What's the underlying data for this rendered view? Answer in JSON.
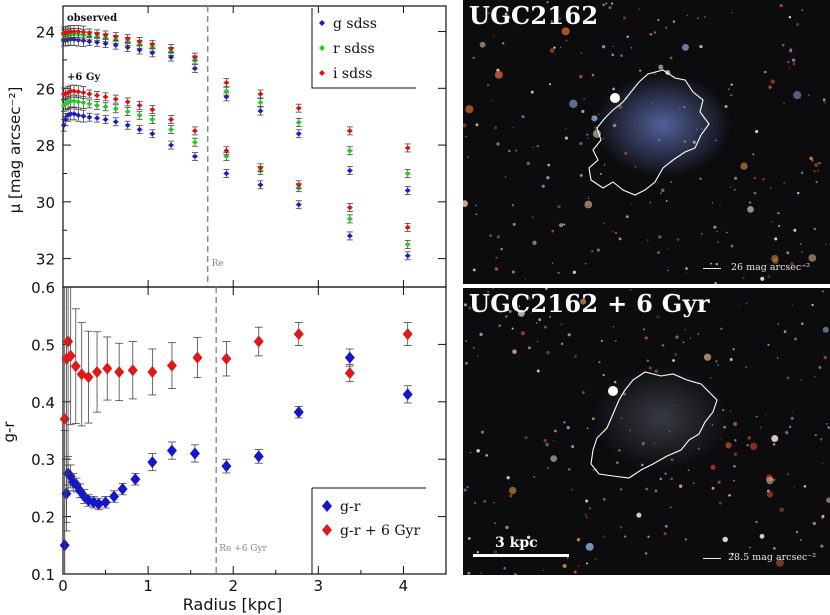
{
  "colors": {
    "g": "#1a1acc",
    "r": "#22cc22",
    "i": "#dd1111",
    "gr": "#1515cc",
    "gr6": "#dd1a1a",
    "axis": "#111111",
    "dash": "#888888"
  },
  "chart_data": [
    {
      "type": "scatter",
      "title": "",
      "xlabel": "",
      "ylabel": "μ [mag arcsec⁻²]",
      "xlim": [
        0,
        4.5
      ],
      "ylim": [
        33.0,
        23.1
      ],
      "yticks": [
        24,
        26,
        28,
        30,
        32
      ],
      "annotations": {
        "observed": "observed",
        "plus6": "+6 Gy",
        "re": "Re"
      },
      "re_line_x": 1.7,
      "legend": {
        "position": "top-right",
        "entries": [
          "g sdss",
          "r sdss",
          "i sdss"
        ]
      },
      "x": [
        0.01,
        0.03,
        0.06,
        0.09,
        0.13,
        0.18,
        0.24,
        0.31,
        0.4,
        0.5,
        0.62,
        0.76,
        0.9,
        1.05,
        1.27,
        1.55,
        1.92,
        2.32,
        2.77,
        3.37,
        4.05
      ],
      "series": [
        {
          "name": "g sdss",
          "group": "observed",
          "values": [
            24.3,
            24.3,
            24.28,
            24.27,
            24.28,
            24.3,
            24.32,
            24.35,
            24.38,
            24.42,
            24.48,
            24.56,
            24.65,
            24.75,
            24.9,
            25.3,
            26.3,
            26.8,
            27.6,
            28.9,
            29.6
          ]
        },
        {
          "name": "r sdss",
          "group": "observed",
          "values": [
            24.15,
            24.15,
            24.12,
            24.1,
            24.1,
            24.1,
            24.13,
            24.15,
            24.18,
            24.22,
            24.28,
            24.35,
            24.45,
            24.55,
            24.7,
            25.0,
            26.1,
            26.5,
            27.2,
            28.2,
            29.0
          ]
        },
        {
          "name": "i sdss",
          "group": "observed",
          "values": [
            24.05,
            24.05,
            24.02,
            24.0,
            24.0,
            24.0,
            24.02,
            24.05,
            24.08,
            24.12,
            24.18,
            24.25,
            24.35,
            24.45,
            24.6,
            24.9,
            25.8,
            26.2,
            26.7,
            27.5,
            28.1
          ]
        },
        {
          "name": "g sdss",
          "group": "+6 Gyr",
          "values": [
            27.3,
            27.1,
            26.95,
            26.9,
            26.9,
            26.95,
            26.98,
            27.02,
            27.05,
            27.1,
            27.18,
            27.3,
            27.45,
            27.6,
            28.0,
            28.4,
            29.0,
            29.4,
            30.1,
            31.2,
            31.9
          ]
        },
        {
          "name": "r sdss",
          "group": "+6 Gyr",
          "values": [
            26.6,
            26.55,
            26.5,
            26.45,
            26.45,
            26.48,
            26.5,
            26.55,
            26.6,
            26.65,
            26.72,
            26.82,
            26.95,
            27.1,
            27.45,
            27.9,
            28.4,
            28.9,
            29.5,
            30.6,
            31.5
          ]
        },
        {
          "name": "i sdss",
          "group": "+6 Gyr",
          "values": [
            26.2,
            26.2,
            26.15,
            26.1,
            26.1,
            26.12,
            26.15,
            26.2,
            26.25,
            26.3,
            26.38,
            26.48,
            26.6,
            26.75,
            27.1,
            27.5,
            28.2,
            28.8,
            29.4,
            30.2,
            30.9
          ]
        }
      ]
    },
    {
      "type": "scatter",
      "title": "",
      "xlabel": "Radius [kpc]",
      "ylabel": "g-r",
      "xlim": [
        0,
        4.5
      ],
      "ylim": [
        0.1,
        0.6
      ],
      "xticks": [
        0,
        1,
        2,
        3,
        4
      ],
      "yticks": [
        0.1,
        0.2,
        0.3,
        0.4,
        0.5,
        0.6
      ],
      "annotations": {
        "re6": "Re +6 Gyr"
      },
      "re_line_x": 1.8,
      "legend": {
        "position": "bottom-right",
        "entries": [
          "g-r",
          "g-r + 6 Gyr"
        ]
      },
      "series": [
        {
          "name": "g-r",
          "x": [
            0.02,
            0.04,
            0.06,
            0.09,
            0.12,
            0.16,
            0.2,
            0.25,
            0.3,
            0.36,
            0.42,
            0.5,
            0.6,
            0.7,
            0.85,
            1.05,
            1.28,
            1.55,
            1.92,
            2.3,
            2.77,
            3.37,
            4.05
          ],
          "values": [
            0.15,
            0.24,
            0.275,
            0.27,
            0.26,
            0.255,
            0.245,
            0.235,
            0.228,
            0.225,
            0.222,
            0.225,
            0.235,
            0.248,
            0.265,
            0.295,
            0.315,
            0.31,
            0.288,
            0.305,
            0.382,
            0.477,
            0.413
          ],
          "errors": [
            0.2,
            0.05,
            0.03,
            0.02,
            0.015,
            0.012,
            0.012,
            0.012,
            0.01,
            0.01,
            0.01,
            0.01,
            0.01,
            0.01,
            0.01,
            0.015,
            0.015,
            0.015,
            0.012,
            0.012,
            0.01,
            0.015,
            0.015
          ]
        },
        {
          "name": "g-r + 6 Gyr",
          "x": [
            0.02,
            0.04,
            0.06,
            0.09,
            0.15,
            0.22,
            0.3,
            0.4,
            0.52,
            0.66,
            0.82,
            1.05,
            1.28,
            1.58,
            1.92,
            2.3,
            2.77,
            3.37,
            4.05
          ],
          "values": [
            0.37,
            0.475,
            0.505,
            0.48,
            0.462,
            0.448,
            0.443,
            0.452,
            0.458,
            0.452,
            0.455,
            0.452,
            0.463,
            0.477,
            0.475,
            0.505,
            0.518,
            0.45,
            0.518
          ],
          "errors": [
            0.37,
            0.3,
            0.25,
            0.12,
            0.1,
            0.09,
            0.08,
            0.07,
            0.055,
            0.05,
            0.05,
            0.04,
            0.04,
            0.035,
            0.03,
            0.025,
            0.02,
            0.015,
            0.02
          ]
        }
      ]
    }
  ],
  "images": {
    "top": {
      "title": "UGC2162",
      "scalebar": "26 mag arcsec⁻²"
    },
    "bottom": {
      "title": "UGC2162 + 6 Gyr",
      "scalebar": "28.5 mag arcsec⁻²",
      "kpc_label": "3 kpc"
    }
  }
}
